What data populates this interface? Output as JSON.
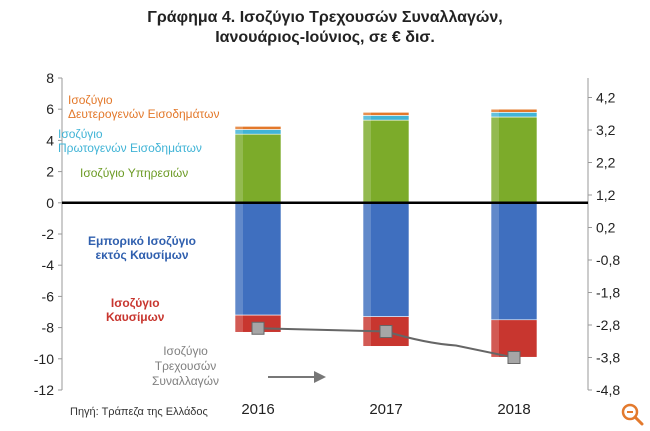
{
  "header": {
    "title_line1": "Γράφημα 4. Ισοζύγιο Τρεχουσών Συναλλαγών,",
    "title_line2": "Ιανουάριος-Ιούνιος, σε € δισ."
  },
  "source_text": "Πηγή: Τράπεζα της Ελλάδος",
  "annotations": {
    "secondary_income": [
      "Ισοζύγιο",
      "Δευτερογενών Εισοδημάτων"
    ],
    "primary_income": [
      "Ισοζύγιο",
      "Πρωτογενών Εισοδημάτων"
    ],
    "services": [
      "Ισοζύγιο Υπηρεσιών"
    ],
    "trade_ex_fuel": [
      "Εμπορικό Ισοζύγιο",
      "εκτός Καυσίμων"
    ],
    "fuel": [
      "Ισοζύγιο",
      "Καυσίμων"
    ],
    "current_account": [
      "Ισοζύγιο",
      "Τρεχουσών",
      "Συναλλαγών"
    ]
  },
  "chart_data": {
    "type": "bar",
    "stacked": true,
    "categories": [
      "2016",
      "2017",
      "2018"
    ],
    "series": [
      {
        "name": "Ισοζύγιο Υπηρεσιών",
        "color": "#7cab2a",
        "values": [
          4.4,
          5.3,
          5.5
        ]
      },
      {
        "name": "Ισοζύγιο Πρωτογενών Εισοδημάτων",
        "color": "#41b4d6",
        "values": [
          0.3,
          0.3,
          0.3
        ]
      },
      {
        "name": "Ισοζύγιο Δευτερογενών Εισοδημάτων",
        "color": "#e3782a",
        "values": [
          0.2,
          0.2,
          0.2
        ]
      },
      {
        "name": "Εμπορικό Ισοζύγιο εκτός Καυσίμων",
        "color": "#3f6fbf",
        "values": [
          -7.2,
          -7.3,
          -7.5
        ]
      },
      {
        "name": "Ισοζύγιο Καυσίμων",
        "color": "#c8362f",
        "values": [
          -1.1,
          -1.9,
          -2.4
        ]
      }
    ],
    "line": {
      "name": "Ισοζύγιο Τρεχουσών Συναλλαγών",
      "axis": "right",
      "color": "#7f7f7f",
      "values": [
        -2.9,
        -3.0,
        -3.8
      ]
    },
    "left_axis": {
      "ylim": [
        -12,
        8
      ],
      "ticks": [
        "8",
        "6",
        "4",
        "2",
        "0",
        "-2",
        "-4",
        "-6",
        "-8",
        "-10",
        "-12"
      ]
    },
    "right_axis": {
      "ylim": [
        -4.8,
        4.8
      ],
      "ticks": [
        "4,2",
        "3,2",
        "2,2",
        "1,2",
        "0,2",
        "-0,8",
        "-1,8",
        "-2,8",
        "-3,8",
        "-4,8"
      ]
    }
  }
}
